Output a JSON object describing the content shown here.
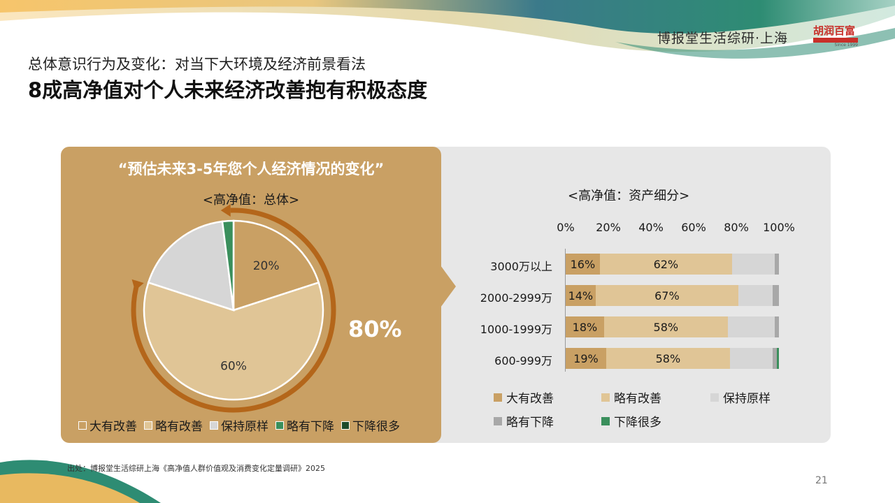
{
  "header": {
    "brand": "博报堂生活综研·上海",
    "logo_text": "胡润百富",
    "logo_sub": "Since 1999",
    "subtitle": "总体意识行为及变化：对当下大环境及经济前景看法",
    "title": "8成高净值对个人未来经济改善抱有积极态度"
  },
  "colors": {
    "da_you_gaishan": "#c9a064",
    "lue_you_gaishan": "#e0c596",
    "baochi_yuanyang": "#d6d6d6",
    "lue_you_xiajiang_pie": "#3a8f5c",
    "xiajiang_hen_duo_pie": "#1d4a2b",
    "lue_you_xiajiang_bar": "#a8a8a8",
    "xiajiang_hen_duo_bar": "#3a8f5c",
    "panel_left": "#c9a064",
    "panel_right": "#e7e7e7",
    "arc": "#b4661a"
  },
  "left_panel": {
    "question": "“预估未来3-5年您个人经济情况的变化”",
    "pie_subtitle": "<高净值：总体>",
    "big_percent": "80%",
    "legend": [
      "大有改善",
      "略有改善",
      "保持原样",
      "略有下降",
      "下降很多"
    ]
  },
  "right_panel": {
    "subtitle": "<高净值：资产细分>",
    "legend": [
      "大有改善",
      "略有改善",
      "保持原样",
      "略有下降",
      "下降很多"
    ]
  },
  "chart_data": [
    {
      "type": "pie",
      "title": "<高净值：总体>",
      "labels": [
        "大有改善",
        "略有改善",
        "保持原样",
        "略有下降",
        "下降很多"
      ],
      "values": [
        20,
        60,
        18,
        2,
        0
      ],
      "data_labels": [
        "20%",
        "60%",
        "",
        "",
        ""
      ],
      "highlight": "80%"
    },
    {
      "type": "bar",
      "orientation": "horizontal",
      "stacked": true,
      "title": "<高净值：资产细分>",
      "categories": [
        "3000万以上",
        "2000-2999万",
        "1000-1999万",
        "600-999万"
      ],
      "x_ticks": [
        "0%",
        "20%",
        "40%",
        "60%",
        "80%",
        "100%"
      ],
      "xlim": [
        0,
        100
      ],
      "series": [
        {
          "name": "大有改善",
          "values": [
            16,
            14,
            18,
            19
          ],
          "labels": [
            "16%",
            "14%",
            "18%",
            "19%"
          ]
        },
        {
          "name": "略有改善",
          "values": [
            62,
            67,
            58,
            58
          ],
          "labels": [
            "62%",
            "67%",
            "58%",
            "58%"
          ]
        },
        {
          "name": "保持原样",
          "values": [
            20,
            16,
            22,
            20
          ],
          "labels": [
            "",
            "",
            "",
            ""
          ]
        },
        {
          "name": "略有下降",
          "values": [
            2,
            3,
            2,
            2
          ],
          "labels": [
            "",
            "",
            "",
            ""
          ]
        },
        {
          "name": "下降很多",
          "values": [
            0,
            0,
            0,
            1
          ],
          "labels": [
            "",
            "",
            "",
            ""
          ]
        }
      ]
    }
  ],
  "footer": {
    "source": "出处：博报堂生活综研上海《高净值人群价值观及消费变化定量调研》2025",
    "page": "21"
  }
}
